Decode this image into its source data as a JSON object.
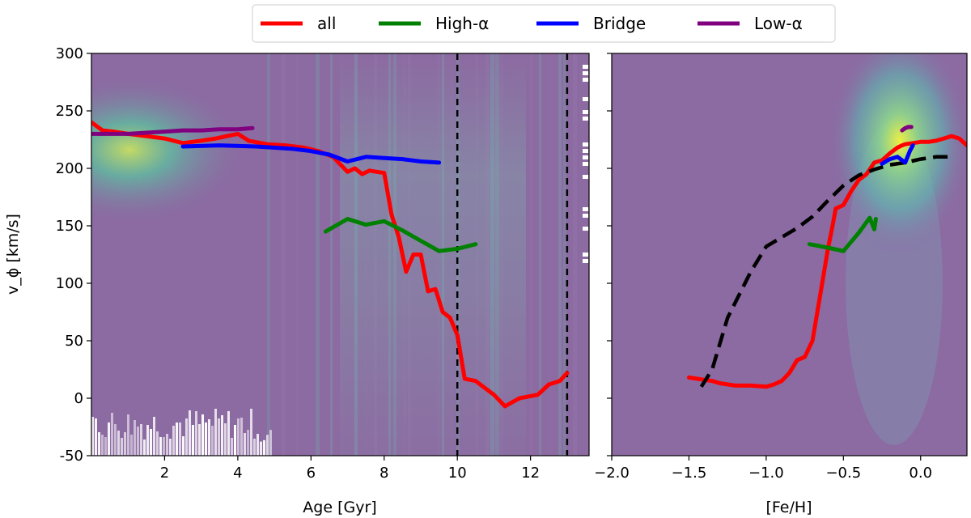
{
  "chart_data": [
    {
      "type": "line",
      "panel": "left",
      "xlabel": "Age [Gyr]",
      "ylabel": "v_ϕ [km/s]",
      "xlim": [
        0,
        13.6
      ],
      "ylim": [
        -50,
        300
      ],
      "xticks": [
        2,
        4,
        6,
        8,
        10,
        12
      ],
      "yticks": [
        -50,
        0,
        50,
        100,
        150,
        200,
        250,
        300
      ],
      "background": "density heatmap",
      "vlines": [
        10.0,
        13.0
      ],
      "series": [
        {
          "name": "all",
          "color": "#ff0000",
          "x": [
            0,
            0.3,
            0.6,
            1.0,
            1.5,
            2.0,
            2.5,
            3.0,
            3.4,
            3.7,
            4.0,
            4.3,
            4.8,
            5.3,
            5.8,
            6.2,
            6.6,
            7.0,
            7.2,
            7.4,
            7.6,
            7.8,
            8.0,
            8.2,
            8.4,
            8.6,
            8.8,
            9.0,
            9.2,
            9.4,
            9.6,
            9.8,
            10.0,
            10.2,
            10.5,
            11.0,
            11.3,
            11.7,
            12.2,
            12.5,
            12.8,
            13.0
          ],
          "y": [
            240,
            233,
            232,
            230,
            228,
            226,
            222,
            224,
            226,
            228,
            230,
            224,
            221,
            220,
            218,
            215,
            210,
            197,
            200,
            195,
            198,
            197,
            196,
            160,
            140,
            110,
            125,
            125,
            93,
            95,
            75,
            70,
            55,
            17,
            15,
            3,
            -7,
            0,
            3,
            12,
            15,
            22
          ]
        },
        {
          "name": "High-α",
          "color": "#008000",
          "x": [
            6.4,
            7.0,
            7.5,
            8.0,
            8.5,
            9.0,
            9.5,
            10.0,
            10.5
          ],
          "y": [
            145,
            156,
            151,
            154,
            146,
            137,
            128,
            130,
            134
          ]
        },
        {
          "name": "Bridge",
          "color": "#0000ff",
          "x": [
            2.5,
            3.5,
            4.5,
            5.5,
            6.0,
            6.5,
            7.0,
            7.5,
            8.0,
            8.5,
            9.0,
            9.5
          ],
          "y": [
            219,
            220,
            219,
            217,
            215,
            212,
            206,
            210,
            209,
            208,
            206,
            205
          ]
        },
        {
          "name": "Low-α",
          "color": "#800080",
          "x": [
            0,
            0.5,
            1.0,
            1.5,
            2.0,
            2.5,
            3.0,
            3.5,
            4.0,
            4.4
          ],
          "y": [
            230,
            230,
            230,
            231,
            232,
            233,
            233,
            234,
            234,
            235
          ]
        }
      ]
    },
    {
      "type": "line",
      "panel": "right",
      "xlabel": "[Fe/H]",
      "xlim": [
        -2.0,
        0.3
      ],
      "ylim": [
        -50,
        300
      ],
      "xticks": [
        "−2.0",
        "−1.5",
        "−1.0",
        "−0.5",
        "0.0"
      ],
      "background": "density heatmap",
      "series": [
        {
          "name": "all",
          "color": "#ff0000",
          "x": [
            -1.5,
            -1.45,
            -1.35,
            -1.3,
            -1.2,
            -1.1,
            -1.0,
            -0.95,
            -0.9,
            -0.85,
            -0.8,
            -0.75,
            -0.7,
            -0.65,
            -0.6,
            -0.57,
            -0.55,
            -0.5,
            -0.45,
            -0.4,
            -0.35,
            -0.3,
            -0.25,
            -0.2,
            -0.15,
            -0.12,
            -0.1,
            -0.05,
            0,
            0.05,
            0.1,
            0.15,
            0.2,
            0.25,
            0.3
          ],
          "y": [
            18,
            17,
            15,
            13,
            11,
            11,
            10,
            12,
            15,
            22,
            33,
            36,
            50,
            90,
            130,
            150,
            165,
            168,
            180,
            190,
            195,
            205,
            207,
            213,
            218,
            220,
            221,
            222,
            223,
            223,
            224,
            226,
            228,
            226,
            220
          ]
        },
        {
          "name": "dashed",
          "color": "#000000",
          "dashed": true,
          "x": [
            -1.42,
            -1.35,
            -1.25,
            -1.1,
            -1.0,
            -0.9,
            -0.8,
            -0.7,
            -0.6,
            -0.5,
            -0.4,
            -0.3,
            -0.2,
            -0.1,
            0,
            0.1,
            0.2
          ],
          "y": [
            10,
            25,
            70,
            110,
            132,
            140,
            148,
            158,
            172,
            185,
            194,
            199,
            203,
            205,
            208,
            210,
            210
          ]
        },
        {
          "name": "High-α",
          "color": "#008000",
          "x": [
            -0.72,
            -0.6,
            -0.5,
            -0.4,
            -0.33,
            -0.3,
            -0.29
          ],
          "y": [
            134,
            131,
            128,
            144,
            157,
            147,
            156
          ]
        },
        {
          "name": "Bridge",
          "color": "#0000ff",
          "x": [
            -0.25,
            -0.2,
            -0.15,
            -0.1,
            -0.07,
            -0.05
          ],
          "y": [
            204,
            208,
            210,
            205,
            215,
            220
          ]
        },
        {
          "name": "Low-α",
          "color": "#800080",
          "x": [
            -0.12,
            -0.1,
            -0.08,
            -0.06
          ],
          "y": [
            233,
            235,
            236,
            236
          ]
        }
      ]
    }
  ],
  "legend": {
    "placement": "top-center",
    "items": [
      {
        "label": "all",
        "color": "#ff0000"
      },
      {
        "label": "High-α",
        "color": "#008000"
      },
      {
        "label": "Bridge",
        "color": "#0000ff"
      },
      {
        "label": "Low-α",
        "color": "#800080"
      }
    ]
  }
}
